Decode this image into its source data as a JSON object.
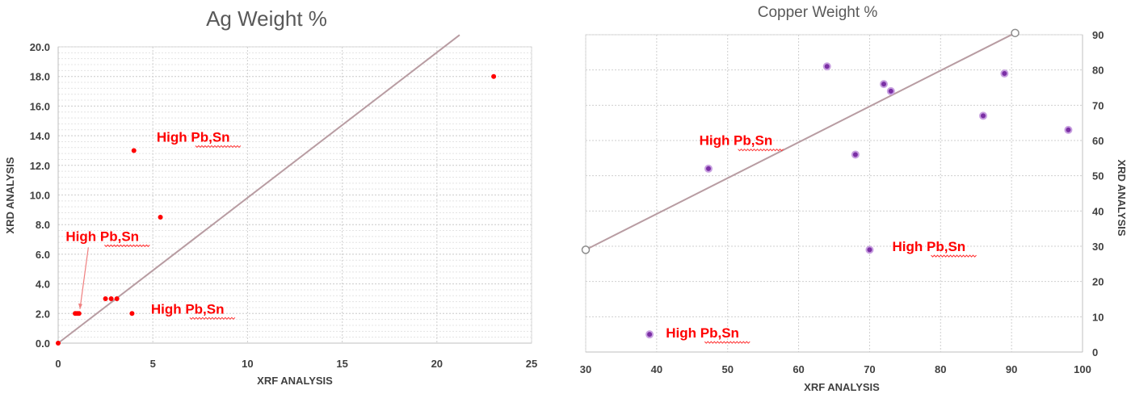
{
  "chart_data": [
    {
      "type": "scatter",
      "title": "Ag Weight %",
      "xlabel": "XRF ANALYSIS",
      "ylabel": "XRD ANALYSIS",
      "xlim": [
        0,
        25
      ],
      "ylim": [
        0,
        20
      ],
      "x_ticks": [
        "0",
        "5",
        "10",
        "15",
        "20",
        "25"
      ],
      "y_ticks": [
        "0.0",
        "2.0",
        "4.0",
        "6.0",
        "8.0",
        "10.0",
        "12.0",
        "14.0",
        "16.0",
        "18.0",
        "20.0"
      ],
      "grid": true,
      "points": [
        {
          "x": 0,
          "y": 0
        },
        {
          "x": 0.9,
          "y": 2
        },
        {
          "x": 1.0,
          "y": 2
        },
        {
          "x": 1.1,
          "y": 2
        },
        {
          "x": 2.5,
          "y": 3
        },
        {
          "x": 2.8,
          "y": 3
        },
        {
          "x": 3.1,
          "y": 3
        },
        {
          "x": 3.9,
          "y": 2
        },
        {
          "x": 4.0,
          "y": 13
        },
        {
          "x": 5.4,
          "y": 8.5
        },
        {
          "x": 23.0,
          "y": 18
        }
      ],
      "reference_line": {
        "x": [
          0,
          21.2
        ],
        "y": [
          0,
          20.8
        ]
      },
      "annotations": [
        {
          "text": "High Pb,Sn",
          "x": 5.2,
          "y": 13.6
        },
        {
          "text": "High Pb,Sn",
          "x": 0.4,
          "y": 6.9,
          "arrow_to": {
            "x": 1.15,
            "y": 2.3
          }
        },
        {
          "text": "High Pb,Sn",
          "x": 4.9,
          "y": 2.0
        }
      ],
      "colors": {
        "points": "#ff0000",
        "line": "#b89ca2",
        "annotation": "#ff0000"
      }
    },
    {
      "type": "scatter",
      "title": "Copper Weight %",
      "xlabel": "XRF ANALYSIS",
      "ylabel": "XRD ANALYSIS",
      "xlim": [
        30,
        100
      ],
      "ylim": [
        0,
        90
      ],
      "x_ticks": [
        "30",
        "40",
        "50",
        "60",
        "70",
        "80",
        "90",
        "100"
      ],
      "y_ticks": [
        "0",
        "10",
        "20",
        "30",
        "40",
        "50",
        "60",
        "70",
        "80",
        "90"
      ],
      "y_axis_side": "right",
      "grid": true,
      "points": [
        {
          "x": 39,
          "y": 5
        },
        {
          "x": 47.3,
          "y": 52
        },
        {
          "x": 64,
          "y": 81
        },
        {
          "x": 68,
          "y": 56
        },
        {
          "x": 70,
          "y": 29
        },
        {
          "x": 72,
          "y": 76
        },
        {
          "x": 73,
          "y": 74
        },
        {
          "x": 86,
          "y": 67
        },
        {
          "x": 89,
          "y": 79
        },
        {
          "x": 98,
          "y": 63
        }
      ],
      "reference_line": {
        "x": [
          30,
          90.5
        ],
        "y": [
          29,
          90.5
        ]
      },
      "annotations": [
        {
          "text": "High Pb,Sn",
          "x": 46,
          "y": 58.7
        },
        {
          "text": "High Pb,Sn",
          "x": 73.2,
          "y": 28.6
        },
        {
          "text": "High Pb,Sn",
          "x": 41.3,
          "y": 4.1
        }
      ],
      "colors": {
        "points": "#7b2fa5",
        "point_outline": "#c8a0e0",
        "line": "#b89ca2",
        "annotation": "#ff0000"
      }
    }
  ]
}
